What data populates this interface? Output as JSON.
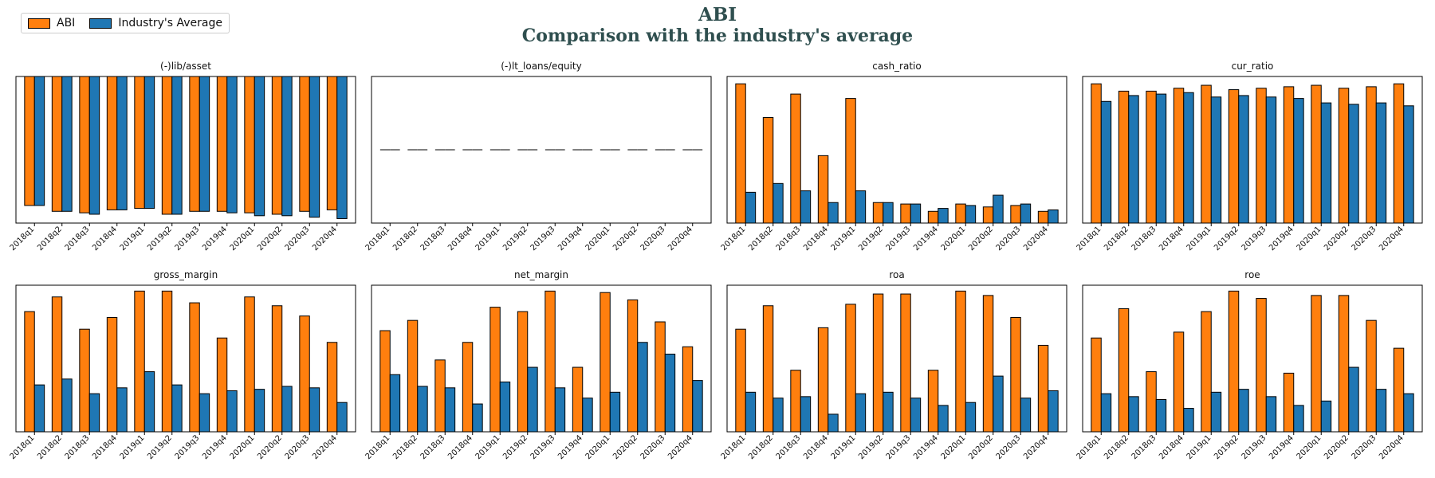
{
  "title": "ABI",
  "subtitle": "Comparison with the industry's average",
  "colors": {
    "company": "#ff7f0e",
    "industry": "#1f77b4"
  },
  "legend": [
    {
      "label": "ABI",
      "color": "#ff7f0e"
    },
    {
      "label": "Industry's Average",
      "color": "#1f77b4"
    }
  ],
  "chart_data": [
    {
      "type": "bar",
      "title": "(-)lib/asset",
      "ylim": [
        -1,
        0
      ],
      "categories": [
        "2018q1",
        "2018q2",
        "2018q3",
        "2018q4",
        "2019q1",
        "2019q2",
        "2019q3",
        "2019q4",
        "2020q1",
        "2020q2",
        "2020q3",
        "2020q4"
      ],
      "series": [
        {
          "name": "ABI",
          "values": [
            -0.88,
            -0.92,
            -0.93,
            -0.91,
            -0.9,
            -0.94,
            -0.92,
            -0.92,
            -0.93,
            -0.94,
            -0.92,
            -0.91
          ]
        },
        {
          "name": "Industry's Average",
          "values": [
            -0.88,
            -0.92,
            -0.94,
            -0.91,
            -0.9,
            -0.94,
            -0.92,
            -0.93,
            -0.95,
            -0.95,
            -0.96,
            -0.97
          ]
        }
      ]
    },
    {
      "type": "bar",
      "title": "(-)lt_loans/equity",
      "ylim": [
        -0.06,
        0.06
      ],
      "categories": [
        "2018q1",
        "2018q2",
        "2018q3",
        "2018q4",
        "2019q1",
        "2019q2",
        "2019q3",
        "2019q4",
        "2020q1",
        "2020q2",
        "2020q3",
        "2020q4"
      ],
      "series": [
        {
          "name": "ABI",
          "values": [
            0,
            0,
            0,
            0,
            0,
            0,
            0,
            0,
            0,
            0,
            0,
            0
          ]
        },
        {
          "name": "Industry's Average",
          "values": [
            0,
            0,
            0,
            0,
            0,
            0,
            0,
            0,
            0,
            0,
            0,
            0
          ]
        }
      ]
    },
    {
      "type": "bar",
      "title": "cash_ratio",
      "ylim": [
        0,
        1
      ],
      "categories": [
        "2018q1",
        "2018q2",
        "2018q3",
        "2018q4",
        "2019q1",
        "2019q2",
        "2019q3",
        "2019q4",
        "2020q1",
        "2020q2",
        "2020q3",
        "2020q4"
      ],
      "series": [
        {
          "name": "ABI",
          "values": [
            0.95,
            0.72,
            0.88,
            0.46,
            0.85,
            0.14,
            0.13,
            0.08,
            0.13,
            0.11,
            0.12,
            0.08
          ]
        },
        {
          "name": "Industry's Average",
          "values": [
            0.21,
            0.27,
            0.22,
            0.14,
            0.22,
            0.14,
            0.13,
            0.1,
            0.12,
            0.19,
            0.13,
            0.09
          ]
        }
      ]
    },
    {
      "type": "bar",
      "title": "cur_ratio",
      "ylim": [
        0,
        1
      ],
      "categories": [
        "2018q1",
        "2018q2",
        "2018q3",
        "2018q4",
        "2019q1",
        "2019q2",
        "2019q3",
        "2019q4",
        "2020q1",
        "2020q2",
        "2020q3",
        "2020q4"
      ],
      "series": [
        {
          "name": "ABI",
          "values": [
            0.95,
            0.9,
            0.9,
            0.92,
            0.94,
            0.91,
            0.92,
            0.93,
            0.94,
            0.92,
            0.93,
            0.95
          ]
        },
        {
          "name": "Industry's Average",
          "values": [
            0.83,
            0.87,
            0.88,
            0.89,
            0.86,
            0.87,
            0.86,
            0.85,
            0.82,
            0.81,
            0.82,
            0.8
          ]
        }
      ]
    },
    {
      "type": "bar",
      "title": "gross_margin",
      "ylim": [
        0,
        1
      ],
      "categories": [
        "2018q1",
        "2018q2",
        "2018q3",
        "2018q4",
        "2019q1",
        "2019q2",
        "2019q3",
        "2019q4",
        "2020q1",
        "2020q2",
        "2020q3",
        "2020q4"
      ],
      "series": [
        {
          "name": "ABI",
          "values": [
            0.82,
            0.92,
            0.7,
            0.78,
            0.96,
            0.96,
            0.88,
            0.64,
            0.92,
            0.86,
            0.79,
            0.61
          ]
        },
        {
          "name": "Industry's Average",
          "values": [
            0.32,
            0.36,
            0.26,
            0.3,
            0.41,
            0.32,
            0.26,
            0.28,
            0.29,
            0.31,
            0.3,
            0.2
          ]
        }
      ]
    },
    {
      "type": "bar",
      "title": "net_margin",
      "ylim": [
        0,
        1
      ],
      "categories": [
        "2018q1",
        "2018q2",
        "2018q3",
        "2018q4",
        "2019q1",
        "2019q2",
        "2019q3",
        "2019q4",
        "2020q1",
        "2020q2",
        "2020q3",
        "2020q4"
      ],
      "series": [
        {
          "name": "ABI",
          "values": [
            0.69,
            0.76,
            0.49,
            0.61,
            0.85,
            0.82,
            0.96,
            0.44,
            0.95,
            0.9,
            0.75,
            0.58
          ]
        },
        {
          "name": "Industry's Average",
          "values": [
            0.39,
            0.31,
            0.3,
            0.19,
            0.34,
            0.44,
            0.3,
            0.23,
            0.27,
            0.61,
            0.53,
            0.35
          ]
        }
      ]
    },
    {
      "type": "bar",
      "title": "roa",
      "ylim": [
        0,
        1
      ],
      "categories": [
        "2018q1",
        "2018q2",
        "2018q3",
        "2018q4",
        "2019q1",
        "2019q2",
        "2019q3",
        "2019q4",
        "2020q1",
        "2020q2",
        "2020q3",
        "2020q4"
      ],
      "series": [
        {
          "name": "ABI",
          "values": [
            0.7,
            0.86,
            0.42,
            0.71,
            0.87,
            0.94,
            0.94,
            0.42,
            0.96,
            0.93,
            0.78,
            0.59
          ]
        },
        {
          "name": "Industry's Average",
          "values": [
            0.27,
            0.23,
            0.24,
            0.12,
            0.26,
            0.27,
            0.23,
            0.18,
            0.2,
            0.38,
            0.23,
            0.28
          ]
        }
      ]
    },
    {
      "type": "bar",
      "title": "roe",
      "ylim": [
        0,
        1
      ],
      "categories": [
        "2018q1",
        "2018q2",
        "2018q3",
        "2018q4",
        "2019q1",
        "2019q2",
        "2019q3",
        "2019q4",
        "2020q1",
        "2020q2",
        "2020q3",
        "2020q4"
      ],
      "series": [
        {
          "name": "ABI",
          "values": [
            0.64,
            0.84,
            0.41,
            0.68,
            0.82,
            0.96,
            0.91,
            0.4,
            0.93,
            0.93,
            0.76,
            0.57
          ]
        },
        {
          "name": "Industry's Average",
          "values": [
            0.26,
            0.24,
            0.22,
            0.16,
            0.27,
            0.29,
            0.24,
            0.18,
            0.21,
            0.44,
            0.29,
            0.26
          ]
        }
      ]
    }
  ]
}
